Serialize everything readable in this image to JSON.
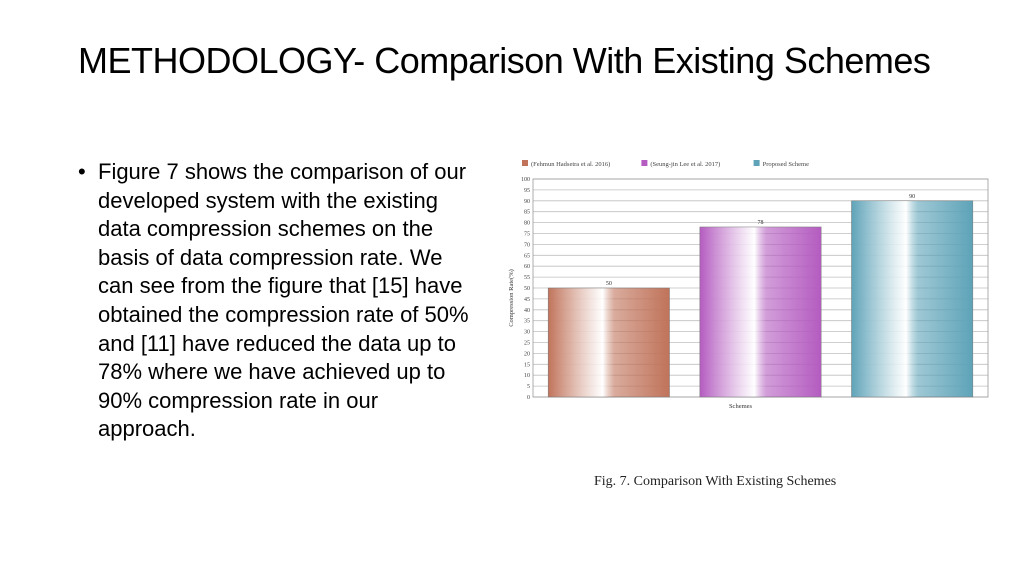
{
  "slide": {
    "title": "METHODOLOGY- Comparison With Existing Schemes",
    "bullet": "Figure 7 shows the comparison of our developed system with the existing data compression schemes on the basis of data compression rate. We can see from the figure that [15] have obtained the compression rate of 50% and [11] have reduced the data up to 78% where we have achieved up to 90% compression rate in our approach.",
    "bullet_symbol": "•",
    "caption": "Fig. 7.   Comparison With Existing Schemes"
  },
  "chart_data": {
    "type": "bar",
    "categories": [
      "(Fehmun Hadsetra et al. 2016)",
      "(Seung-jin Lee et al. 2017)",
      "Proposed Scheme"
    ],
    "values": [
      50,
      78,
      90
    ],
    "data_labels": [
      "50",
      "78",
      "90"
    ],
    "series_colors": [
      "#c0735a",
      "#b45cc0",
      "#5ea3b8"
    ],
    "xlabel": "Schemes",
    "ylabel": "Compression Rate(%)",
    "ylim": [
      0,
      100
    ],
    "yticks": [
      0,
      5,
      10,
      15,
      20,
      25,
      30,
      35,
      40,
      45,
      50,
      55,
      60,
      65,
      70,
      75,
      80,
      85,
      90,
      95,
      100
    ],
    "grid": true,
    "legend_position": "top-left"
  }
}
